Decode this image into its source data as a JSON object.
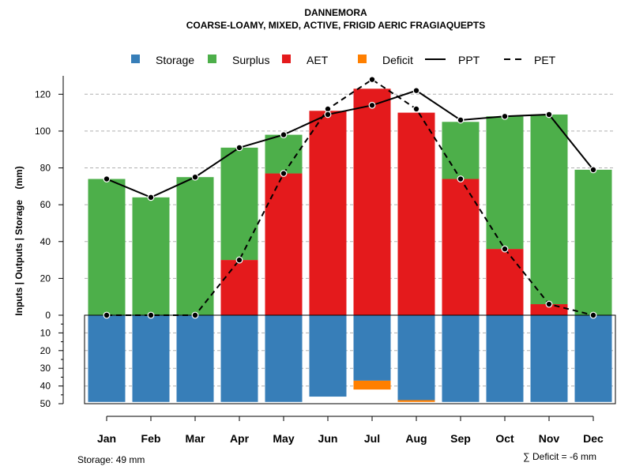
{
  "chart_data": {
    "type": "bar",
    "title": "DANNEMORA",
    "subtitle": "COARSE-LOAMY, MIXED, ACTIVE, FRIGID AERIC FRAGIAQUEPTS",
    "ylabel": "Inputs | Outputs | Storage    (mm)",
    "categories": [
      "Jan",
      "Feb",
      "Mar",
      "Apr",
      "May",
      "Jun",
      "Jul",
      "Aug",
      "Sep",
      "Oct",
      "Nov",
      "Dec"
    ],
    "upper_ylim": [
      0,
      130
    ],
    "upper_ticks": [
      "0",
      "20",
      "40",
      "60",
      "80",
      "100",
      "120"
    ],
    "lower_ylim": [
      0,
      50
    ],
    "lower_ticks": [
      "0",
      "10",
      "20",
      "30",
      "40",
      "50"
    ],
    "series": [
      {
        "name": "AET",
        "color": "#E41A1C",
        "values": [
          0,
          0,
          0,
          30,
          77,
          111,
          123,
          110,
          74,
          36,
          6,
          0
        ]
      },
      {
        "name": "Surplus",
        "color": "#4DAF4A",
        "values": [
          74,
          64,
          75,
          61,
          21,
          0,
          0,
          0,
          31,
          72,
          103,
          79
        ]
      },
      {
        "name": "Storage",
        "color": "#377EB8",
        "values": [
          49,
          49,
          49,
          49,
          49,
          46,
          37,
          48,
          49,
          49,
          49,
          49
        ]
      },
      {
        "name": "Deficit",
        "color": "#FF7F00",
        "values": [
          0,
          0,
          0,
          0,
          0,
          0,
          -5,
          -1,
          0,
          0,
          0,
          0
        ]
      },
      {
        "name": "PPT",
        "color": "#000000",
        "line": "solid",
        "values": [
          74,
          64,
          75,
          91,
          98,
          109,
          114,
          122,
          106,
          108,
          109,
          79
        ]
      },
      {
        "name": "PET",
        "color": "#000000",
        "line": "dashed",
        "values": [
          0,
          0,
          0,
          30,
          77,
          112,
          128,
          112,
          74,
          36,
          6,
          0
        ]
      }
    ],
    "legend": {
      "position": "top",
      "items": [
        {
          "label": "Storage",
          "kind": "square",
          "color": "#377EB8"
        },
        {
          "label": "Surplus",
          "kind": "square",
          "color": "#4DAF4A"
        },
        {
          "label": "AET",
          "kind": "square",
          "color": "#E41A1C"
        },
        {
          "label": "Deficit",
          "kind": "square",
          "color": "#FF7F00"
        },
        {
          "label": "PPT",
          "kind": "line-solid",
          "color": "#000000"
        },
        {
          "label": "PET",
          "kind": "line-dashed",
          "color": "#000000"
        }
      ]
    },
    "grid": true
  },
  "footer": {
    "storage_note": "Storage: 49 mm",
    "deficit_note": "∑ Deficit = -6 mm"
  }
}
